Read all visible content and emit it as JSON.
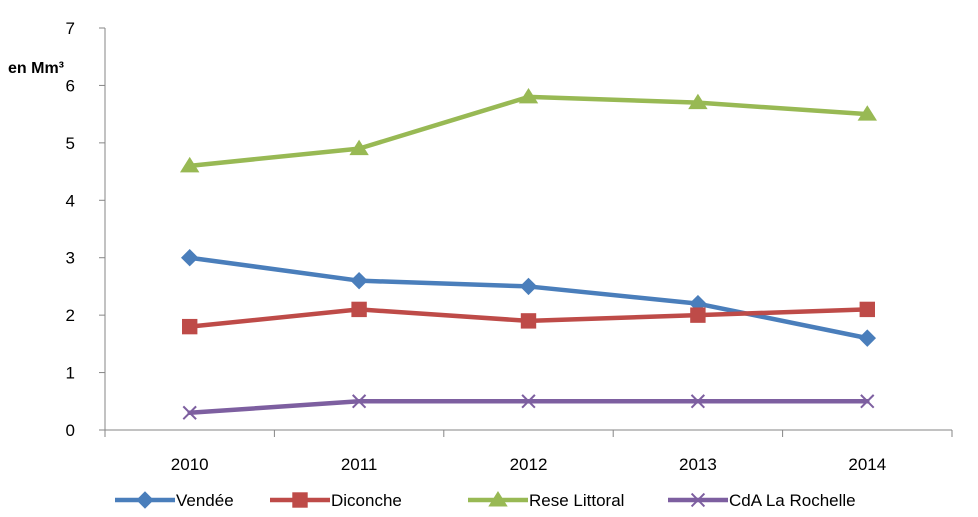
{
  "chart_data": {
    "type": "line",
    "title": "",
    "xlabel": "",
    "ylabel": "en Mm³",
    "x": [
      "2010",
      "2011",
      "2012",
      "2013",
      "2014"
    ],
    "ylim": [
      0,
      7
    ],
    "yticks": [
      0,
      1,
      2,
      3,
      4,
      5,
      6,
      7
    ],
    "grid": false,
    "legend": "bottom",
    "series": [
      {
        "name": "Vendée",
        "values": [
          3.0,
          2.6,
          2.5,
          2.2,
          1.6
        ],
        "color": "#4a7ebb",
        "marker": "diamond"
      },
      {
        "name": "Diconche",
        "values": [
          1.8,
          2.1,
          1.9,
          2.0,
          2.1
        ],
        "color": "#be4b48",
        "marker": "square"
      },
      {
        "name": "Rese Littoral",
        "values": [
          4.6,
          4.9,
          5.8,
          5.7,
          5.5
        ],
        "color": "#98b954",
        "marker": "triangle"
      },
      {
        "name": "CdA La Rochelle",
        "values": [
          0.3,
          0.5,
          0.5,
          0.5,
          0.5
        ],
        "color": "#7d5fa0",
        "marker": "x"
      }
    ]
  }
}
